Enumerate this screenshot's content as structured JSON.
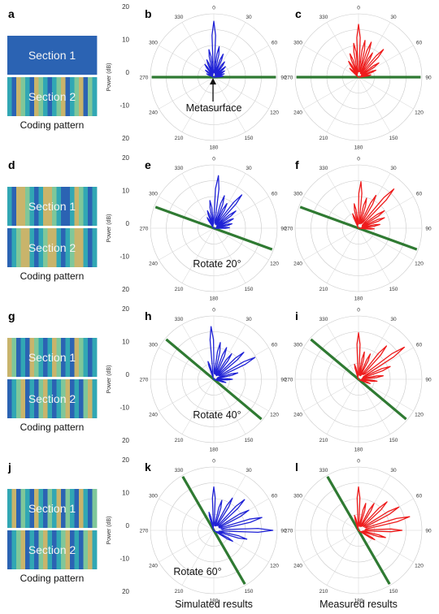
{
  "colors": {
    "simulated": "#1f22d6",
    "measured": "#ee1c1c",
    "metasurface_line": "#2f7a32",
    "coding_blue": "#2b63b3",
    "coding_cyan": "#31a7b4",
    "coding_green": "#7fc79a",
    "coding_yellow": "#c9b46b"
  },
  "rows": [
    {
      "label_coding": "a",
      "label_sim": "b",
      "label_meas": "c",
      "section1": "Section 1",
      "section2": "Section 2",
      "coding_caption": "Coding pattern",
      "rotation_deg": 0,
      "annotation": "Metasurface",
      "sim_lobes": [
        [
          0,
          18
        ],
        [
          -10,
          9
        ],
        [
          10,
          10
        ],
        [
          -22,
          6
        ],
        [
          22,
          8
        ],
        [
          -35,
          5
        ],
        [
          35,
          6
        ],
        [
          48,
          5
        ],
        [
          60,
          4
        ],
        [
          72,
          3.5
        ],
        [
          84,
          3
        ],
        [
          -50,
          3.5
        ],
        [
          -65,
          2.5
        ]
      ],
      "meas_lobes": [
        [
          0,
          17
        ],
        [
          -8,
          11
        ],
        [
          10,
          12
        ],
        [
          -20,
          8
        ],
        [
          20,
          12
        ],
        [
          30,
          9
        ],
        [
          42,
          12
        ],
        [
          55,
          8
        ],
        [
          68,
          6
        ],
        [
          80,
          4
        ],
        [
          -32,
          6
        ],
        [
          -45,
          4
        ]
      ]
    },
    {
      "label_coding": "d",
      "label_sim": "e",
      "label_meas": "f",
      "section1": "Section 1",
      "section2": "Section 2",
      "coding_caption": "Coding pattern",
      "rotation_deg": 20,
      "annotation": "Rotate 20°",
      "sim_lobes": [
        [
          5,
          17
        ],
        [
          -8,
          9
        ],
        [
          18,
          11
        ],
        [
          28,
          9
        ],
        [
          40,
          14
        ],
        [
          52,
          9
        ],
        [
          64,
          7
        ],
        [
          76,
          6
        ],
        [
          88,
          5
        ],
        [
          -20,
          6
        ],
        [
          -32,
          4
        ]
      ],
      "meas_lobes": [
        [
          3,
          15
        ],
        [
          -10,
          8
        ],
        [
          15,
          10
        ],
        [
          28,
          12
        ],
        [
          42,
          17
        ],
        [
          56,
          10
        ],
        [
          68,
          9
        ],
        [
          80,
          7
        ],
        [
          92,
          5
        ],
        [
          -22,
          5
        ]
      ]
    },
    {
      "label_coding": "g",
      "label_sim": "h",
      "label_meas": "i",
      "section1": "Section 1",
      "section2": "Section 2",
      "coding_caption": "Coding pattern",
      "rotation_deg": 40,
      "annotation": "Rotate 40°",
      "sim_lobes": [
        [
          -3,
          17
        ],
        [
          10,
          12
        ],
        [
          22,
          11
        ],
        [
          35,
          10
        ],
        [
          48,
          13
        ],
        [
          62,
          15
        ],
        [
          75,
          8
        ],
        [
          90,
          6
        ],
        [
          105,
          4
        ],
        [
          -18,
          6
        ]
      ],
      "meas_lobes": [
        [
          0,
          15
        ],
        [
          12,
          9
        ],
        [
          25,
          9
        ],
        [
          40,
          14
        ],
        [
          55,
          18
        ],
        [
          68,
          11
        ],
        [
          82,
          8
        ],
        [
          96,
          6
        ],
        [
          110,
          4
        ],
        [
          -15,
          5
        ]
      ]
    },
    {
      "label_coding": "j",
      "label_sim": "k",
      "label_meas": "l",
      "section1": "Section 1",
      "section2": "Section 2",
      "coding_caption": "Coding pattern",
      "rotation_deg": 60,
      "annotation": "Rotate 60°",
      "sim_lobes": [
        [
          0,
          14
        ],
        [
          15,
          10
        ],
        [
          30,
          12
        ],
        [
          45,
          14
        ],
        [
          60,
          13
        ],
        [
          75,
          16
        ],
        [
          90,
          19
        ],
        [
          105,
          11
        ],
        [
          120,
          7
        ],
        [
          -15,
          6
        ]
      ],
      "meas_lobes": [
        [
          0,
          14
        ],
        [
          15,
          9
        ],
        [
          30,
          10
        ],
        [
          45,
          13
        ],
        [
          60,
          15
        ],
        [
          75,
          17
        ],
        [
          90,
          14
        ],
        [
          105,
          9
        ],
        [
          120,
          6
        ],
        [
          -15,
          5
        ]
      ]
    }
  ],
  "power_axis": {
    "label": "Power (dB)",
    "ticks": [
      "20",
      "10",
      "0",
      "-10",
      "20",
      "10",
      "0",
      "-10",
      "20"
    ]
  },
  "angle_labels": [
    "0",
    "30",
    "60",
    "90",
    "120",
    "150",
    "180",
    "210",
    "240",
    "270",
    "300",
    "330"
  ],
  "bottom_labels": {
    "simulated": "Simulated results",
    "measured": "Measured results"
  }
}
